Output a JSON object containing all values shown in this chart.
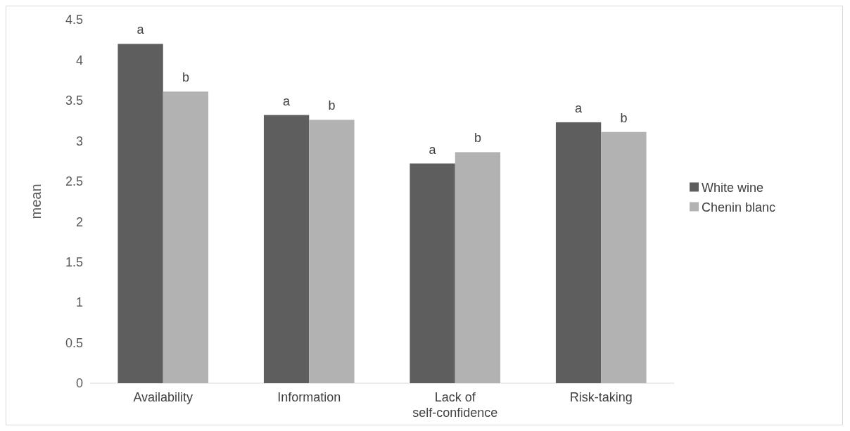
{
  "chart_data": {
    "type": "bar",
    "ylabel": "mean",
    "categories": [
      "Availability",
      "Information",
      "Lack of self-confidence",
      "Risk-taking"
    ],
    "series": [
      {
        "name": "White wine",
        "color": "#5e5e5e",
        "values": [
          4.2,
          3.32,
          2.72,
          3.23
        ],
        "value_labels": [
          "a",
          "a",
          "a",
          "a"
        ]
      },
      {
        "name": "Chenin blanc",
        "color": "#b2b2b2",
        "values": [
          3.61,
          3.26,
          2.86,
          3.11
        ],
        "value_labels": [
          "b",
          "b",
          "b",
          "b"
        ]
      }
    ],
    "ylim": [
      0,
      4.5
    ],
    "yticks": [
      0,
      0.5,
      1,
      1.5,
      2,
      2.5,
      3,
      3.5,
      4,
      4.5
    ],
    "grid": false,
    "legend": "right"
  }
}
